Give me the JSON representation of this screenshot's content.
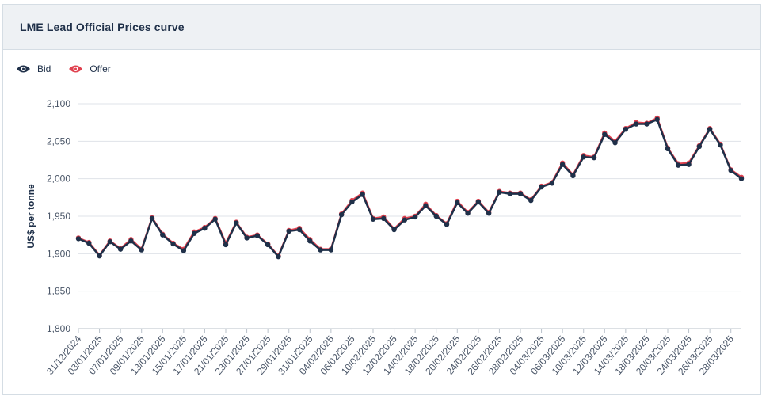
{
  "header": {
    "title": "LME Lead Official Prices curve"
  },
  "legend": {
    "items": [
      {
        "label": "Bid",
        "color": "#1f3049",
        "icon": "eye-icon"
      },
      {
        "label": "Offer",
        "color": "#e0414f",
        "icon": "eye-icon"
      }
    ]
  },
  "chart_data": {
    "type": "line",
    "title": "",
    "xlabel": "",
    "ylabel": "US$ per tonne",
    "ylim": [
      1800,
      2100
    ],
    "yticks": [
      1800,
      1850,
      1900,
      1950,
      2000,
      2050,
      2100
    ],
    "ytick_labels": [
      "1,800",
      "1,850",
      "1,900",
      "1,950",
      "2,000",
      "2,050",
      "2,100"
    ],
    "grid": true,
    "legend_position": "top-left",
    "x": [
      "31/12/2024",
      "02/01/2025",
      "03/01/2025",
      "06/01/2025",
      "07/01/2025",
      "08/01/2025",
      "09/01/2025",
      "10/01/2025",
      "13/01/2025",
      "14/01/2025",
      "15/01/2025",
      "16/01/2025",
      "17/01/2025",
      "20/01/2025",
      "21/01/2025",
      "22/01/2025",
      "23/01/2025",
      "24/01/2025",
      "27/01/2025",
      "28/01/2025",
      "29/01/2025",
      "30/01/2025",
      "31/01/2025",
      "03/02/2025",
      "04/02/2025",
      "05/02/2025",
      "06/02/2025",
      "07/02/2025",
      "10/02/2025",
      "11/02/2025",
      "12/02/2025",
      "13/02/2025",
      "14/02/2025",
      "17/02/2025",
      "18/02/2025",
      "19/02/2025",
      "20/02/2025",
      "21/02/2025",
      "24/02/2025",
      "25/02/2025",
      "26/02/2025",
      "27/02/2025",
      "28/02/2025",
      "03/03/2025",
      "04/03/2025",
      "05/03/2025",
      "06/03/2025",
      "07/03/2025",
      "10/03/2025",
      "11/03/2025",
      "12/03/2025",
      "13/03/2025",
      "14/03/2025",
      "17/03/2025",
      "18/03/2025",
      "19/03/2025",
      "20/03/2025",
      "21/03/2025",
      "24/03/2025",
      "25/03/2025",
      "26/03/2025",
      "27/03/2025",
      "28/03/2025",
      "31/03/2025"
    ],
    "xtick_labels": [
      "31/12/2024",
      "03/01/2025",
      "07/01/2025",
      "09/01/2025",
      "13/01/2025",
      "15/01/2025",
      "17/01/2025",
      "21/01/2025",
      "23/01/2025",
      "27/01/2025",
      "29/01/2025",
      "31/01/2025",
      "04/02/2025",
      "06/02/2025",
      "10/02/2025",
      "12/02/2025",
      "14/02/2025",
      "18/02/2025",
      "20/02/2025",
      "24/02/2025",
      "26/02/2025",
      "28/02/2025",
      "04/03/2025",
      "06/03/2025",
      "10/03/2025",
      "12/03/2025",
      "14/03/2025",
      "18/03/2025",
      "20/03/2025",
      "24/03/2025",
      "26/03/2025",
      "28/03/2025"
    ],
    "series": [
      {
        "name": "Bid",
        "color": "#1f3049",
        "values": [
          1920,
          1914,
          1897,
          1916,
          1906,
          1917,
          1905,
          1947,
          1925,
          1913,
          1904,
          1927,
          1934,
          1946,
          1912,
          1941,
          1921,
          1924,
          1912,
          1896,
          1930,
          1932,
          1917,
          1905,
          1905,
          1952,
          1969,
          1979,
          1946,
          1947,
          1932,
          1945,
          1949,
          1964,
          1950,
          1939,
          1968,
          1954,
          1969,
          1954,
          1982,
          1980,
          1980,
          1971,
          1989,
          1994,
          2019,
          2004,
          2029,
          2028,
          2059,
          2048,
          2066,
          2073,
          2073,
          2079,
          2040,
          2018,
          2019,
          2043,
          2066,
          2045,
          2011,
          2000
        ]
      },
      {
        "name": "Offer",
        "color": "#e0414f",
        "values": [
          1921,
          1915,
          1898,
          1917,
          1907,
          1919,
          1906,
          1948,
          1926,
          1914,
          1906,
          1929,
          1935,
          1947,
          1914,
          1942,
          1922,
          1925,
          1913,
          1897,
          1931,
          1934,
          1919,
          1906,
          1906,
          1953,
          1971,
          1981,
          1947,
          1949,
          1933,
          1947,
          1950,
          1966,
          1951,
          1940,
          1970,
          1955,
          1970,
          1955,
          1983,
          1981,
          1981,
          1972,
          1990,
          1995,
          2021,
          2005,
          2031,
          2029,
          2061,
          2050,
          2067,
          2075,
          2074,
          2081,
          2041,
          2020,
          2021,
          2044,
          2067,
          2046,
          2012,
          2002
        ]
      }
    ]
  }
}
